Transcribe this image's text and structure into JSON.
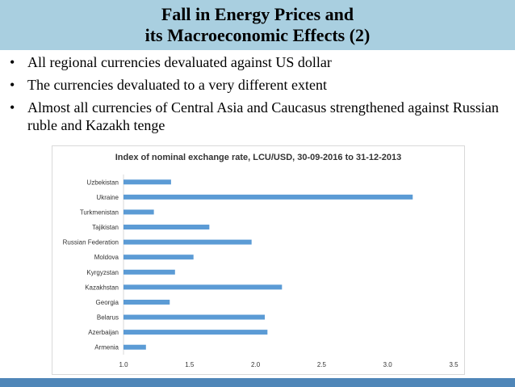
{
  "slide": {
    "title_line1": "Fall in Energy Prices and",
    "title_line2": "its Macroeconomic Effects (2)",
    "bullets": [
      "All regional currencies devaluated against US dollar",
      "The currencies devaluated to a very different extent",
      "Almost all currencies of Central Asia and Caucasus strengthened against Russian ruble and Kazakh tenge"
    ],
    "bullet_symbol": "•"
  },
  "colors": {
    "title_bar": "#a9cfe0",
    "bottom_bar": "#4f86b8",
    "bar": "#5b9bd5",
    "gridline": "#d9d9d9"
  },
  "chart_data": {
    "type": "bar",
    "orientation": "horizontal",
    "title": "Index of nominal exchange rate, LCU/USD, 30-09-2016 to 31-12-2013",
    "categories": [
      "Uzbekistan",
      "Ukraine",
      "Turkmenistan",
      "Tajikistan",
      "Russian Federation",
      "Moldova",
      "Kyrgyzstan",
      "Kazakhstan",
      "Georgia",
      "Belarus",
      "Azerbaijan",
      "Armenia"
    ],
    "values": [
      1.36,
      3.19,
      1.23,
      1.65,
      1.97,
      1.53,
      1.39,
      2.2,
      1.35,
      2.07,
      2.09,
      1.17
    ],
    "xlim": [
      1.0,
      3.5
    ],
    "xticks": [
      "1.0",
      "1.5",
      "2.0",
      "2.5",
      "3.0",
      "3.5"
    ],
    "xlabel": "",
    "ylabel": "",
    "grid": false,
    "legend": "none"
  }
}
